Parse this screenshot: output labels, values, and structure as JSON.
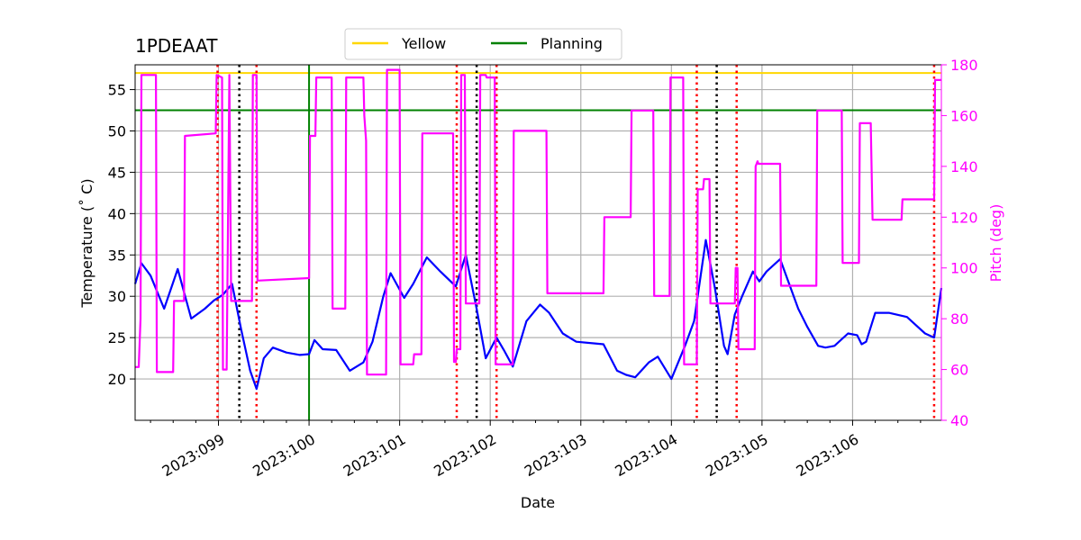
{
  "chart_data": {
    "type": "line",
    "title": "1PDEAAT",
    "xlabel": "Date",
    "ylabel": "Temperature ($^\\circ$C)",
    "ylabel_display": "Temperature (˚ C)",
    "y2label": "Pitch (deg)",
    "x_range": [
      98.08,
      106.98
    ],
    "ylim": [
      15,
      58
    ],
    "y2lim": [
      40,
      180
    ],
    "x_ticks": [
      99,
      100,
      101,
      102,
      103,
      104,
      105,
      106
    ],
    "x_tick_labels": [
      "2023:099",
      "2023:100",
      "2023:101",
      "2023:102",
      "2023:103",
      "2023:104",
      "2023:105",
      "2023:106"
    ],
    "y_ticks": [
      20,
      25,
      30,
      35,
      40,
      45,
      50,
      55
    ],
    "y_tick_labels": [
      "20",
      "25",
      "30",
      "35",
      "40",
      "45",
      "50",
      "55"
    ],
    "y2_ticks": [
      40,
      60,
      80,
      100,
      120,
      140,
      160,
      180
    ],
    "y2_tick_labels": [
      "40",
      "60",
      "80",
      "100",
      "120",
      "140",
      "160",
      "180"
    ],
    "grid": true,
    "legend_position": "top-center",
    "legend": [
      {
        "label": "Yellow",
        "color": "#ffd700"
      },
      {
        "label": "Planning",
        "color": "#008000"
      }
    ],
    "limits": [
      {
        "name": "Yellow",
        "value": 57.0,
        "color": "#ffd700"
      },
      {
        "name": "Planning",
        "value": 52.5,
        "color": "#008000"
      }
    ],
    "planning_vertical_line": 100.0,
    "red_dotted_lines": [
      98.99,
      99.42,
      101.63,
      102.07,
      104.28,
      104.72,
      106.9
    ],
    "black_dotted_lines": [
      99.23,
      101.85,
      104.5
    ],
    "colors": {
      "temperature": "#0000ff",
      "pitch": "#ff00ff",
      "red_line": "#ff0000",
      "black_line": "#000000",
      "planning": "#008000",
      "yellow": "#ffd700",
      "grid": "#b0b0b0",
      "right_axis": "#ff00ff"
    },
    "series": [
      {
        "name": "Temperature",
        "axis": "left",
        "x": [
          98.08,
          98.15,
          98.25,
          98.4,
          98.55,
          98.7,
          98.85,
          98.95,
          99.05,
          99.15,
          99.25,
          99.35,
          99.42,
          99.5,
          99.6,
          99.75,
          99.9,
          100.0,
          100.06,
          100.15,
          100.3,
          100.45,
          100.6,
          100.7,
          100.82,
          100.9,
          101.05,
          101.15,
          101.3,
          101.45,
          101.62,
          101.73,
          101.85,
          101.95,
          102.07,
          102.15,
          102.25,
          102.4,
          102.55,
          102.65,
          102.8,
          102.95,
          103.25,
          103.4,
          103.5,
          103.6,
          103.75,
          103.85,
          104.0,
          104.15,
          104.25,
          104.38,
          104.48,
          104.58,
          104.62,
          104.7,
          104.78,
          104.9,
          104.97,
          105.05,
          105.2,
          105.4,
          105.5,
          105.62,
          105.7,
          105.8,
          105.95,
          106.05,
          106.1,
          106.15,
          106.25,
          106.4,
          106.6,
          106.8,
          106.9,
          106.98
        ],
        "y": [
          31.5,
          34.0,
          32.5,
          28.5,
          33.3,
          27.3,
          28.5,
          29.5,
          30.2,
          31.5,
          26.0,
          21.0,
          18.8,
          22.5,
          23.8,
          23.2,
          22.9,
          23.0,
          24.7,
          23.6,
          23.5,
          21.0,
          22.0,
          24.5,
          30.0,
          32.8,
          29.8,
          31.5,
          34.7,
          33.0,
          31.2,
          35.0,
          28.5,
          22.5,
          25.0,
          23.5,
          21.5,
          27.0,
          29.0,
          28.0,
          25.5,
          24.5,
          24.2,
          21.0,
          20.5,
          20.2,
          22.0,
          22.7,
          20.0,
          24.0,
          27.0,
          36.8,
          31.0,
          24.0,
          23.0,
          27.8,
          30.0,
          33.0,
          31.8,
          33.0,
          34.5,
          28.5,
          26.3,
          24.0,
          23.8,
          24.0,
          25.5,
          25.3,
          24.2,
          24.5,
          28.0,
          28.0,
          27.5,
          25.5,
          25.0,
          31.0
        ]
      },
      {
        "name": "Pitch",
        "axis": "right",
        "x": [
          98.08,
          98.12,
          98.14,
          98.15,
          98.31,
          98.32,
          98.33,
          98.5,
          98.51,
          98.62,
          98.63,
          98.97,
          98.98,
          99.04,
          99.05,
          99.09,
          99.12,
          99.14,
          99.37,
          99.38,
          99.42,
          99.43,
          100.0,
          100.01,
          100.07,
          100.08,
          100.25,
          100.26,
          100.4,
          100.41,
          100.6,
          100.61,
          100.63,
          100.64,
          100.85,
          100.86,
          101.0,
          101.01,
          101.15,
          101.16,
          101.24,
          101.25,
          101.59,
          101.6,
          101.62,
          101.63,
          101.67,
          101.68,
          101.72,
          101.73,
          101.88,
          101.89,
          101.95,
          101.96,
          102.05,
          102.06,
          102.25,
          102.26,
          102.62,
          102.63,
          103.25,
          103.26,
          103.55,
          103.56,
          103.8,
          103.81,
          103.98,
          103.99,
          104.13,
          104.14,
          104.28,
          104.29,
          104.35,
          104.36,
          104.42,
          104.43,
          104.7,
          104.71,
          104.73,
          104.74,
          104.92,
          104.93,
          104.95,
          104.96,
          105.2,
          105.21,
          105.6,
          105.61,
          105.88,
          105.89,
          106.07,
          106.08,
          106.2,
          106.22,
          106.54,
          106.55,
          106.9,
          106.91,
          106.98
        ],
        "y": [
          61,
          61,
          80,
          176,
          176,
          59,
          59,
          59,
          87,
          87,
          152,
          153,
          176,
          175,
          60,
          60,
          176,
          87,
          87,
          176,
          176,
          95,
          96,
          152,
          152,
          175,
          175,
          84,
          84,
          175,
          175,
          160,
          150,
          58,
          58,
          178,
          178,
          62,
          62,
          66,
          66,
          153,
          153,
          63,
          63,
          68,
          68,
          176,
          176,
          86,
          86,
          176,
          176,
          175,
          175,
          62,
          62,
          154,
          154,
          90,
          90,
          120,
          120,
          162,
          162,
          89,
          89,
          175,
          175,
          62,
          62,
          131,
          131,
          135,
          135,
          86,
          86,
          100,
          100,
          68,
          68,
          140,
          142,
          141,
          141,
          93,
          93,
          162,
          162,
          102,
          102,
          157,
          157,
          119,
          119,
          127,
          127,
          174,
          174
        ]
      }
    ]
  }
}
